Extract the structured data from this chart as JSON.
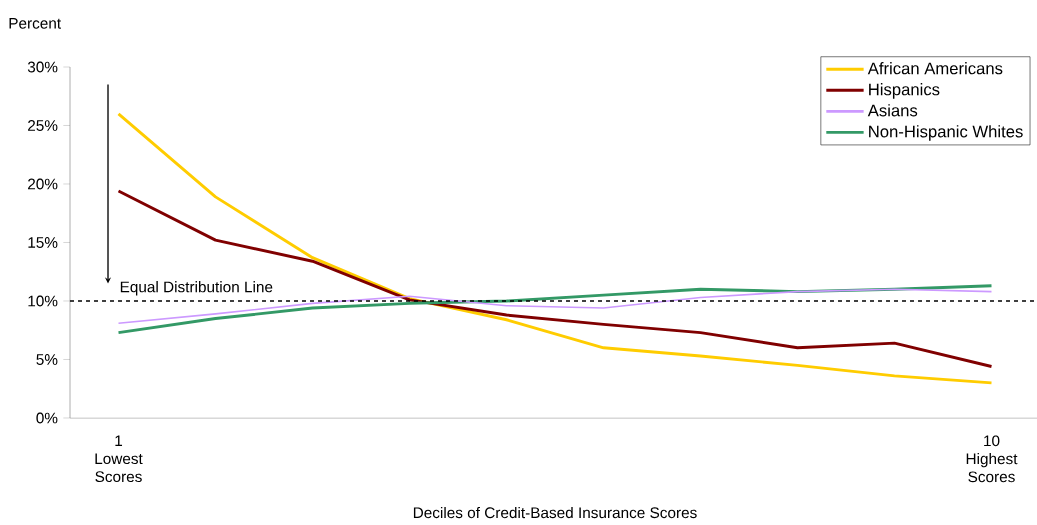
{
  "chart_data": {
    "type": "line",
    "ylabel": "Percent",
    "xlabel": "Deciles of Credit-Based Insurance Scores",
    "categories": [
      "1 Lowest Scores",
      null,
      null,
      null,
      null,
      null,
      null,
      null,
      null,
      "10 Highest Scores"
    ],
    "series": [
      {
        "name": "African Americans",
        "color": "#ffcc00",
        "values": [
          26.0,
          18.9,
          13.7,
          10.2,
          8.4,
          6.0,
          5.3,
          4.5,
          3.6,
          3.0
        ]
      },
      {
        "name": "Hispanics",
        "color": "#800000",
        "values": [
          19.4,
          15.2,
          13.4,
          10.1,
          8.8,
          8.0,
          7.3,
          6.0,
          6.4,
          4.4
        ]
      },
      {
        "name": "Asians",
        "color": "#cc99ff",
        "values": [
          8.1,
          8.9,
          9.8,
          10.4,
          9.6,
          9.4,
          10.3,
          10.8,
          11.0,
          10.8
        ]
      },
      {
        "name": "Non-Hispanic Whites",
        "color": "#339966",
        "values": [
          7.3,
          8.5,
          9.4,
          9.8,
          10.0,
          10.5,
          11.0,
          10.8,
          11.0,
          11.3
        ]
      }
    ],
    "ylim": [
      0,
      30
    ],
    "yticks": [
      {
        "value": 0,
        "label": "0%"
      },
      {
        "value": 5,
        "label": "5%"
      },
      {
        "value": 10,
        "label": "10%"
      },
      {
        "value": 15,
        "label": "15%"
      },
      {
        "value": 20,
        "label": "20%"
      },
      {
        "value": 25,
        "label": "25%"
      },
      {
        "value": 30,
        "label": "30%"
      }
    ],
    "ref_lines": [
      {
        "axis": "y",
        "value": 10,
        "label": "Equal Distribution Line",
        "color": "#000000",
        "line_style": "dashed"
      }
    ],
    "legend": "top right",
    "grid": false,
    "marker": "none",
    "line_style": "solid"
  }
}
